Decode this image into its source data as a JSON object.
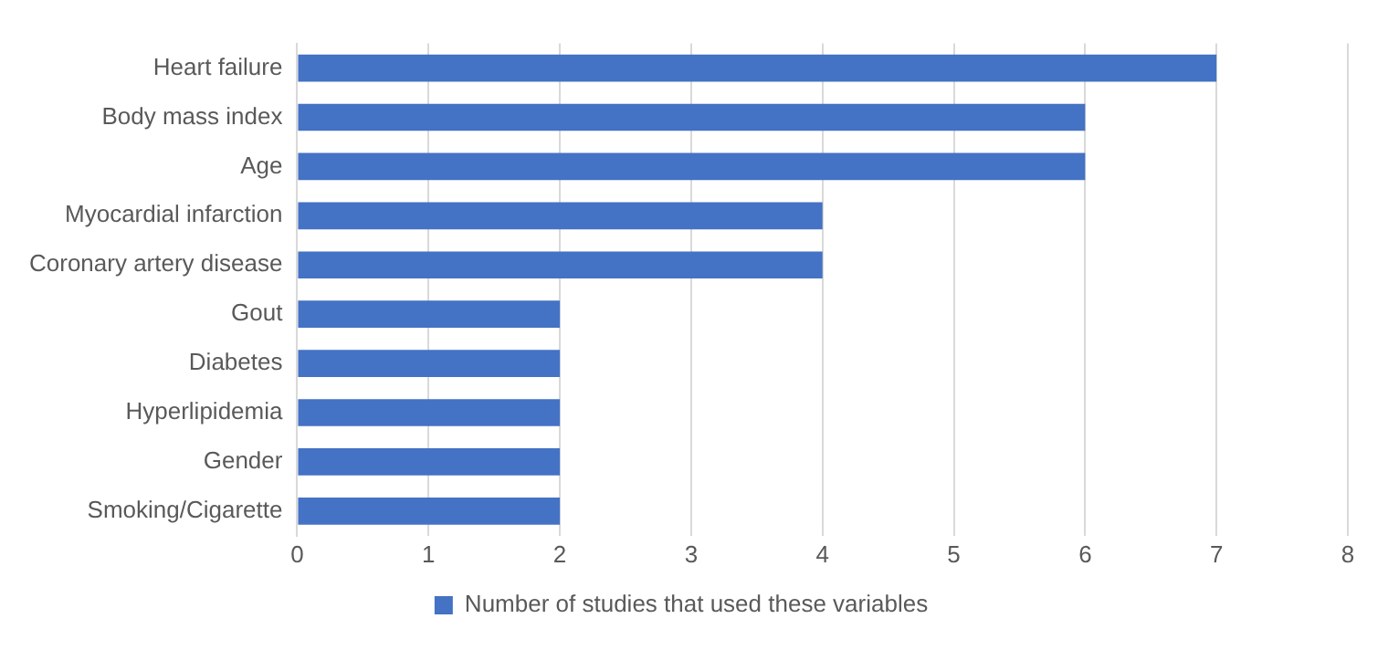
{
  "chart_data": {
    "type": "bar",
    "orientation": "horizontal",
    "categories": [
      "Heart failure",
      "Body mass index",
      "Age",
      "Myocardial infarction",
      "Coronary artery disease",
      "Gout",
      "Diabetes",
      "Hyperlipidemia",
      "Gender",
      "Smoking/Cigarette"
    ],
    "series": [
      {
        "name": "Number of studies that used these variables",
        "color": "#4472c4",
        "values": [
          7,
          6,
          6,
          4,
          4,
          2,
          2,
          2,
          2,
          2
        ]
      }
    ],
    "xlim": [
      0,
      8
    ],
    "xticks": [
      0,
      1,
      2,
      3,
      4,
      5,
      6,
      7,
      8
    ],
    "grid": "x",
    "legend": "bottom"
  }
}
